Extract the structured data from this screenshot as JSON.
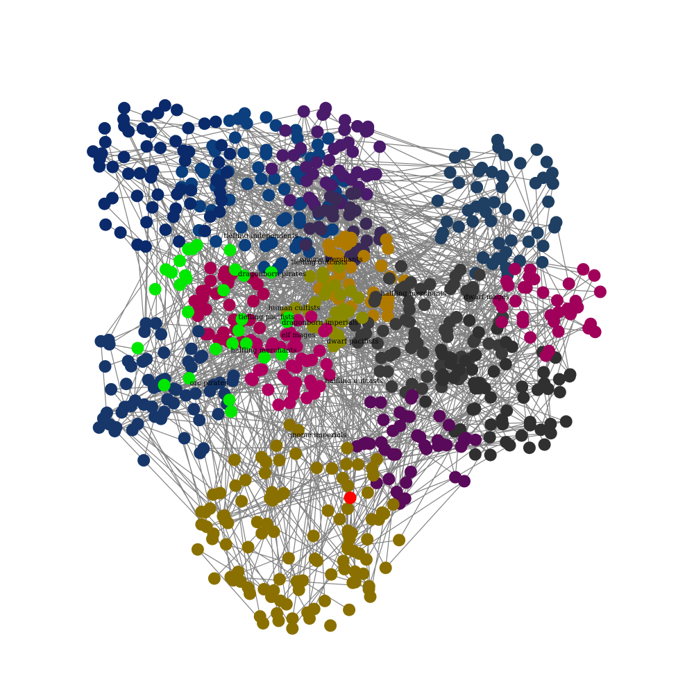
{
  "graph": {
    "clusters": [
      {
        "name": "tiefling independents",
        "color": "#0b3f7d"
      },
      {
        "name": "gnome merchants",
        "color": "#4a1a6b"
      },
      {
        "name": "tiefling outcasts",
        "color": "#3a2a55"
      },
      {
        "name": "dragonborn pirates",
        "color": "#0a2a6b"
      },
      {
        "name": "halfling merchants",
        "color": "#b07a00"
      },
      {
        "name": "dwarf mages",
        "color": "#1f3f63"
      },
      {
        "name": "human cultists",
        "color": "#3a3a3a"
      },
      {
        "name": "tiefling pacifists",
        "color": "#a8004f"
      },
      {
        "name": "dragonborn imperials",
        "color": "#8a8a00"
      },
      {
        "name": "elf mages",
        "color": "#b0005f"
      },
      {
        "name": "dwarf pacifists",
        "color": "#303030"
      },
      {
        "name": "halfling merchants",
        "color": "#a0005a"
      },
      {
        "name": "halfling outcasts",
        "color": "#5a0a5a"
      },
      {
        "name": "orc pirates",
        "color": "#17376b"
      },
      {
        "name": "gnome imperials",
        "color": "#8a7000"
      },
      {
        "name": "",
        "color": "#00e800"
      },
      {
        "name": "",
        "color": "#ff0000"
      }
    ],
    "labels": [
      "tiefling independents",
      "gnome merchants",
      "tiefling outcasts",
      "dragonborn pirates",
      "halfling merchants",
      "dwarf mages",
      "human cultists",
      "tiefling pacifists",
      "dragonborn imperials",
      "elf mages",
      "dwarf pacifists",
      "halfling merchants",
      "halfling outcasts",
      "orc pirates",
      "gnome imperials"
    ]
  }
}
